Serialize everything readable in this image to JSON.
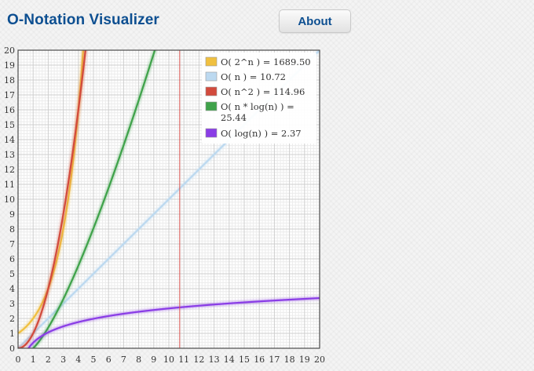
{
  "app": {
    "title": "O-Notation Visualizer"
  },
  "header": {
    "about_label": "About"
  },
  "chart_data": {
    "type": "line",
    "title": "",
    "xlabel": "",
    "ylabel": "",
    "xlim": [
      0,
      20
    ],
    "ylim": [
      0,
      20
    ],
    "xticks": [
      "0",
      "1",
      "2",
      "3",
      "4",
      "5",
      "6",
      "7",
      "8",
      "9",
      "10",
      "11",
      "12",
      "13",
      "14",
      "15",
      "16",
      "17",
      "18",
      "19",
      "20"
    ],
    "yticks": [
      "0",
      "1",
      "2",
      "3",
      "4",
      "5",
      "6",
      "7",
      "8",
      "9",
      "10",
      "11",
      "12",
      "13",
      "14",
      "15",
      "16",
      "17",
      "18",
      "19",
      "20"
    ],
    "grid": true,
    "marker_x": 10.72,
    "marker_color": "#d9534f",
    "legend_position": "top-right",
    "series": [
      {
        "name": "O( 2^n ) = 1689.50",
        "func": "2^n",
        "color": "#f0c040"
      },
      {
        "name": "O( n ) = 10.72",
        "func": "n",
        "color": "#bcd9f0"
      },
      {
        "name": "O( n^2 ) = 114.96",
        "func": "n^2",
        "color": "#d24a3c"
      },
      {
        "name": "O( n * log(n) ) = 25.44",
        "func": "nlogn",
        "color": "#3fa24a"
      },
      {
        "name": "O( log(n) ) = 2.37",
        "func": "log",
        "color": "#8a3de6"
      }
    ]
  }
}
